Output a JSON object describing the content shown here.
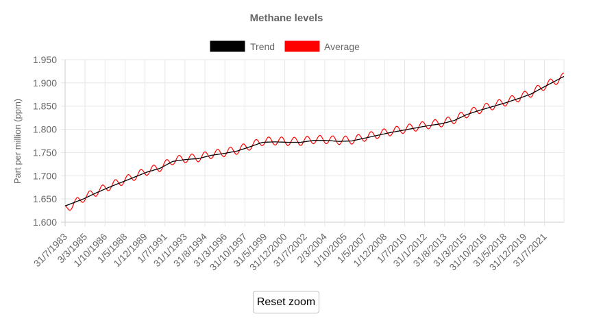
{
  "chart_data": {
    "type": "line",
    "title": "Methane levels",
    "ylabel": "Part per million (ppm)",
    "xlabel": "",
    "ylim": [
      1.6,
      1.95
    ],
    "yticks": [
      "1.600",
      "1.650",
      "1.700",
      "1.750",
      "1.800",
      "1.850",
      "1.900",
      "1.950"
    ],
    "xticks": [
      "31/7/1983",
      "3/3/1985",
      "1/10/1986",
      "1/5/1988",
      "1/12/1989",
      "1/7/1991",
      "31/1/1993",
      "31/8/1994",
      "31/3/1996",
      "31/10/1997",
      "31/5/1999",
      "31/12/2000",
      "31/7/2002",
      "2/3/2004",
      "1/10/2005",
      "1/5/2007",
      "1/12/2008",
      "1/7/2010",
      "31/1/2012",
      "31/8/2013",
      "31/3/2015",
      "31/10/2016",
      "31/5/2018",
      "31/12/2019",
      "31/7/2021"
    ],
    "x_start": 1983.58,
    "x_end": 2022.58,
    "legend": {
      "placement": "top-center"
    },
    "grid": true,
    "series": [
      {
        "name": "Trend",
        "color": "#000000",
        "x": [
          1983.58,
          1985.0,
          1986.0,
          1987.0,
          1988.0,
          1989.0,
          1990.0,
          1991.0,
          1992.0,
          1993.0,
          1994.0,
          1995.0,
          1996.0,
          1997.0,
          1998.0,
          1999.0,
          2000.0,
          2001.0,
          2002.0,
          2003.0,
          2004.0,
          2005.0,
          2006.0,
          2007.0,
          2008.0,
          2009.0,
          2010.0,
          2011.0,
          2012.0,
          2013.0,
          2014.0,
          2015.0,
          2016.0,
          2017.0,
          2018.0,
          2019.0,
          2020.0,
          2021.0,
          2022.58
        ],
        "y": [
          1.635,
          1.65,
          1.663,
          1.675,
          1.686,
          1.697,
          1.708,
          1.716,
          1.731,
          1.735,
          1.737,
          1.744,
          1.748,
          1.753,
          1.762,
          1.772,
          1.773,
          1.772,
          1.772,
          1.776,
          1.776,
          1.774,
          1.775,
          1.781,
          1.787,
          1.793,
          1.798,
          1.803,
          1.808,
          1.812,
          1.819,
          1.832,
          1.841,
          1.849,
          1.857,
          1.866,
          1.876,
          1.891,
          1.914
        ]
      },
      {
        "name": "Average",
        "color": "#ff0000",
        "x": [
          1983.58,
          1985.0,
          1986.0,
          1987.0,
          1988.0,
          1989.0,
          1990.0,
          1991.0,
          1992.0,
          1993.0,
          1994.0,
          1995.0,
          1996.0,
          1997.0,
          1998.0,
          1999.0,
          2000.0,
          2001.0,
          2002.0,
          2003.0,
          2004.0,
          2005.0,
          2006.0,
          2007.0,
          2008.0,
          2009.0,
          2010.0,
          2011.0,
          2012.0,
          2013.0,
          2014.0,
          2015.0,
          2016.0,
          2017.0,
          2018.0,
          2019.0,
          2020.0,
          2021.0,
          2022.58
        ],
        "y": [
          1.628,
          1.652,
          1.665,
          1.677,
          1.688,
          1.699,
          1.71,
          1.718,
          1.733,
          1.737,
          1.739,
          1.746,
          1.75,
          1.755,
          1.764,
          1.774,
          1.775,
          1.774,
          1.774,
          1.778,
          1.778,
          1.776,
          1.777,
          1.783,
          1.789,
          1.795,
          1.8,
          1.805,
          1.81,
          1.814,
          1.821,
          1.834,
          1.843,
          1.851,
          1.859,
          1.868,
          1.878,
          1.893,
          1.913
        ],
        "seasonal_amplitude_ppm": 0.009
      }
    ]
  },
  "controls": {
    "reset_zoom_label": "Reset zoom"
  }
}
